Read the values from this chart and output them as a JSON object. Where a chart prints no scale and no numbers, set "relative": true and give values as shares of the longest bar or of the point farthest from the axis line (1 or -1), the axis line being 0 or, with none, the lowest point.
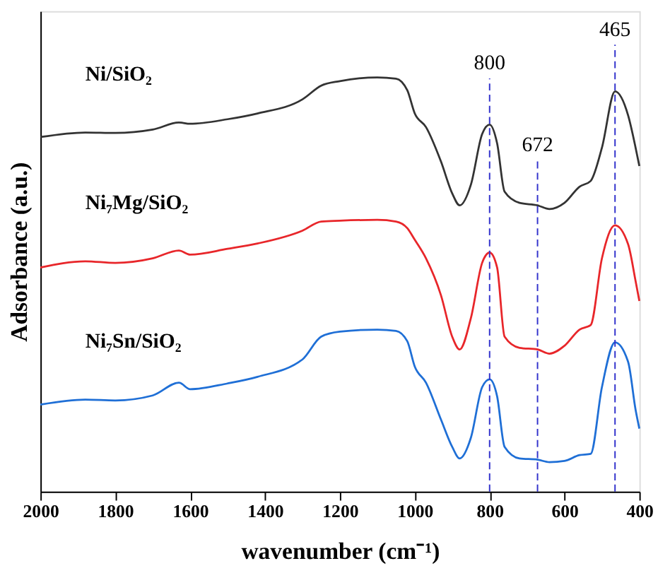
{
  "chart_data": {
    "type": "line",
    "relative": true,
    "xlabel": "wavenumber (cm⁻¹)",
    "ylabel": "Adsorbance (a.u.)",
    "x": [
      2000,
      1880,
      1800,
      1700,
      1630,
      1600,
      1500,
      1420,
      1300,
      1250,
      1200,
      1100,
      1050,
      1020,
      1000,
      970,
      930,
      900,
      880,
      850,
      820,
      800,
      780,
      760,
      720,
      672,
      640,
      600,
      560,
      530,
      500,
      465,
      430,
      410,
      400
    ],
    "xlim": [
      2000,
      400
    ],
    "xticks": [
      2000,
      1800,
      1600,
      1400,
      1200,
      1000,
      800,
      600,
      400
    ],
    "tick_labels": "x",
    "grid": false,
    "legend": false,
    "marker": "none",
    "line_style": "solid",
    "series": [
      {
        "name": "Ni/SiO₂",
        "color": "#333333",
        "values": [
          0.856,
          0.867,
          0.866,
          0.874,
          0.891,
          0.888,
          0.899,
          0.913,
          0.947,
          0.98,
          0.991,
          1.0,
          0.997,
          0.969,
          0.913,
          0.88,
          0.797,
          0.72,
          0.691,
          0.741,
          0.863,
          0.886,
          0.841,
          0.724,
          0.697,
          0.691,
          0.682,
          0.697,
          0.736,
          0.75,
          0.83,
          0.966,
          0.908,
          0.83,
          0.786
        ]
      },
      {
        "name": "Ni₇Mg/SiO₂",
        "color": "#e8262a",
        "values": [
          0.541,
          0.556,
          0.552,
          0.563,
          0.582,
          0.572,
          0.586,
          0.599,
          0.63,
          0.652,
          0.654,
          0.656,
          0.652,
          0.636,
          0.608,
          0.563,
          0.474,
          0.374,
          0.343,
          0.419,
          0.552,
          0.577,
          0.541,
          0.374,
          0.347,
          0.343,
          0.333,
          0.352,
          0.391,
          0.402,
          0.563,
          0.643,
          0.597,
          0.508,
          0.46
        ]
      },
      {
        "name": "Ni₇Sn/SiO₂",
        "color": "#1f6fd6",
        "values": [
          0.21,
          0.222,
          0.22,
          0.232,
          0.263,
          0.247,
          0.261,
          0.277,
          0.319,
          0.374,
          0.386,
          0.391,
          0.388,
          0.363,
          0.302,
          0.263,
          0.174,
          0.108,
          0.08,
          0.13,
          0.252,
          0.271,
          0.23,
          0.108,
          0.08,
          0.077,
          0.071,
          0.074,
          0.088,
          0.091,
          0.252,
          0.36,
          0.313,
          0.197,
          0.152
        ]
      }
    ],
    "ref_lines": [
      {
        "axis": "x",
        "value": 800,
        "label": "800",
        "color": "#3333cc",
        "line_style": "dashed"
      },
      {
        "axis": "x",
        "value": 672,
        "label": "672",
        "color": "#3333cc",
        "line_style": "dashed"
      },
      {
        "axis": "x",
        "value": 465,
        "label": "465",
        "color": "#3333cc",
        "line_style": "dashed"
      }
    ]
  }
}
